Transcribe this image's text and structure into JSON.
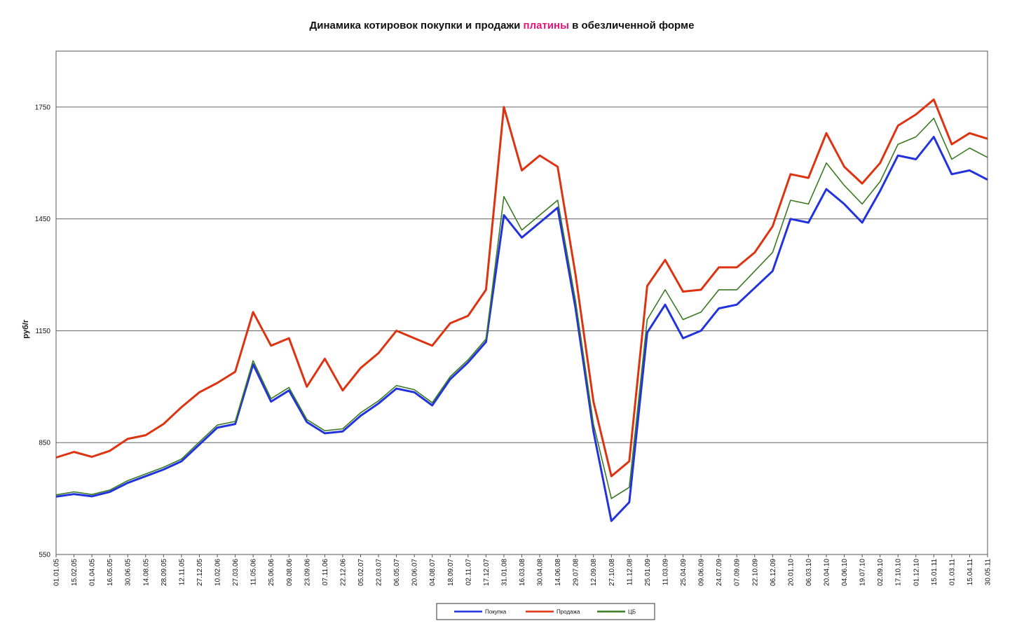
{
  "chart_data": {
    "type": "line",
    "title": {
      "prefix": "Динамика котировок покупки и продажи ",
      "highlight": "платины",
      "suffix": " в обезличенной форме",
      "highlight_color": "#e0157a"
    },
    "xlabel": "",
    "ylabel": "руб/г",
    "ylim": [
      550,
      1900
    ],
    "yticks": [
      550,
      850,
      1150,
      1450,
      1750
    ],
    "grid": true,
    "legend_position": "bottom-center",
    "x_start": "01.01.05",
    "x_end": "30.05.11",
    "xticks": [
      "01.01.05",
      "15.02.05",
      "01.04.05",
      "16.05.05",
      "30.06.05",
      "14.08.05",
      "28.09.05",
      "12.11.05",
      "27.12.05",
      "10.02.06",
      "27.03.06",
      "11.05.06",
      "25.06.06",
      "09.08.06",
      "23.09.06",
      "07.11.06",
      "22.12.06",
      "05.02.07",
      "22.03.07",
      "06.05.07",
      "20.06.07",
      "04.08.07",
      "18.09.07",
      "02.11.07",
      "17.12.07",
      "31.01.08",
      "16.03.08",
      "30.04.08",
      "14.06.08",
      "29.07.08",
      "12.09.08",
      "27.10.08",
      "11.12.08",
      "25.01.09",
      "11.03.09",
      "25.04.09",
      "09.06.09",
      "24.07.09",
      "07.09.09",
      "22.10.09",
      "06.12.09",
      "20.01.10",
      "06.03.10",
      "20.04.10",
      "04.06.10",
      "19.07.10",
      "02.09.10",
      "17.10.10",
      "01.12.10",
      "15.01.11",
      "01.03.11",
      "15.04.11",
      "30.05.11"
    ],
    "series": [
      {
        "name": "Покупка",
        "color": "#2233dd",
        "x": [
          "01.01.05",
          "15.02.05",
          "01.04.05",
          "16.05.05",
          "30.06.05",
          "14.08.05",
          "28.09.05",
          "12.11.05",
          "27.12.05",
          "10.02.06",
          "27.03.06",
          "11.05.06",
          "25.06.06",
          "09.08.06",
          "23.09.06",
          "07.11.06",
          "22.12.06",
          "05.02.07",
          "22.03.07",
          "06.05.07",
          "20.06.07",
          "04.08.07",
          "18.09.07",
          "02.11.07",
          "17.12.07",
          "31.01.08",
          "16.03.08",
          "30.04.08",
          "14.06.08",
          "29.07.08",
          "12.09.08",
          "27.10.08",
          "11.12.08",
          "25.01.09",
          "11.03.09",
          "25.04.09",
          "09.06.09",
          "24.07.09",
          "07.09.09",
          "22.10.09",
          "06.12.09",
          "20.01.10",
          "06.03.10",
          "20.04.10",
          "04.06.10",
          "19.07.10",
          "02.09.10",
          "17.10.10",
          "01.12.10",
          "15.01.11",
          "01.03.11",
          "15.04.11",
          "30.05.11"
        ],
        "values": [
          705,
          712,
          706,
          718,
          742,
          760,
          778,
          800,
          845,
          890,
          900,
          1060,
          960,
          990,
          905,
          875,
          880,
          922,
          955,
          995,
          985,
          950,
          1020,
          1065,
          1120,
          1460,
          1400,
          1440,
          1480,
          1210,
          880,
          640,
          690,
          1145,
          1220,
          1130,
          1150,
          1210,
          1220,
          1265,
          1310,
          1450,
          1440,
          1530,
          1490,
          1440,
          1525,
          1620,
          1610,
          1670,
          1570,
          1580,
          1555
        ]
      },
      {
        "name": "Продажа",
        "color": "#dd3311",
        "x": [
          "01.01.05",
          "15.02.05",
          "01.04.05",
          "16.05.05",
          "30.06.05",
          "14.08.05",
          "28.09.05",
          "12.11.05",
          "27.12.05",
          "10.02.06",
          "27.03.06",
          "11.05.06",
          "25.06.06",
          "09.08.06",
          "23.09.06",
          "07.11.06",
          "22.12.06",
          "05.02.07",
          "22.03.07",
          "06.05.07",
          "20.06.07",
          "04.08.07",
          "18.09.07",
          "02.11.07",
          "17.12.07",
          "31.01.08",
          "16.03.08",
          "30.04.08",
          "14.06.08",
          "29.07.08",
          "12.09.08",
          "27.10.08",
          "11.12.08",
          "25.01.09",
          "11.03.09",
          "25.04.09",
          "09.06.09",
          "24.07.09",
          "07.09.09",
          "22.10.09",
          "06.12.09",
          "20.01.10",
          "06.03.10",
          "20.04.10",
          "04.06.10",
          "19.07.10",
          "02.09.10",
          "17.10.10",
          "01.12.10",
          "15.01.11",
          "01.03.11",
          "15.04.11",
          "30.05.11"
        ],
        "values": [
          810,
          825,
          812,
          828,
          860,
          870,
          900,
          945,
          985,
          1010,
          1040,
          1200,
          1110,
          1130,
          1000,
          1075,
          990,
          1050,
          1090,
          1150,
          1130,
          1110,
          1170,
          1190,
          1260,
          1750,
          1580,
          1620,
          1590,
          1300,
          960,
          760,
          800,
          1270,
          1340,
          1255,
          1260,
          1320,
          1320,
          1360,
          1430,
          1570,
          1560,
          1680,
          1590,
          1545,
          1600,
          1700,
          1730,
          1770,
          1650,
          1680,
          1665
        ]
      },
      {
        "name": "ЦБ",
        "color": "#3a7a22",
        "x": [
          "01.01.05",
          "15.02.05",
          "01.04.05",
          "16.05.05",
          "30.06.05",
          "14.08.05",
          "28.09.05",
          "12.11.05",
          "27.12.05",
          "10.02.06",
          "27.03.06",
          "11.05.06",
          "25.06.06",
          "09.08.06",
          "23.09.06",
          "07.11.06",
          "22.12.06",
          "05.02.07",
          "22.03.07",
          "06.05.07",
          "20.06.07",
          "04.08.07",
          "18.09.07",
          "02.11.07",
          "17.12.07",
          "31.01.08",
          "16.03.08",
          "30.04.08",
          "14.06.08",
          "29.07.08",
          "12.09.08",
          "27.10.08",
          "11.12.08",
          "25.01.09",
          "11.03.09",
          "25.04.09",
          "09.06.09",
          "24.07.09",
          "07.09.09",
          "22.10.09",
          "06.12.09",
          "20.01.10",
          "06.03.10",
          "20.04.10",
          "04.06.10",
          "19.07.10",
          "02.09.10",
          "17.10.10",
          "01.12.10",
          "15.01.11",
          "01.03.11",
          "15.04.11",
          "30.05.11"
        ],
        "values": [
          710,
          718,
          711,
          723,
          748,
          766,
          784,
          806,
          852,
          897,
          907,
          1070,
          968,
          998,
          912,
          882,
          887,
          930,
          962,
          1003,
          992,
          957,
          1027,
          1072,
          1128,
          1510,
          1420,
          1460,
          1500,
          1230,
          900,
          700,
          730,
          1180,
          1260,
          1180,
          1200,
          1260,
          1260,
          1310,
          1360,
          1500,
          1490,
          1600,
          1540,
          1490,
          1550,
          1650,
          1670,
          1720,
          1610,
          1640,
          1615
        ]
      }
    ]
  }
}
